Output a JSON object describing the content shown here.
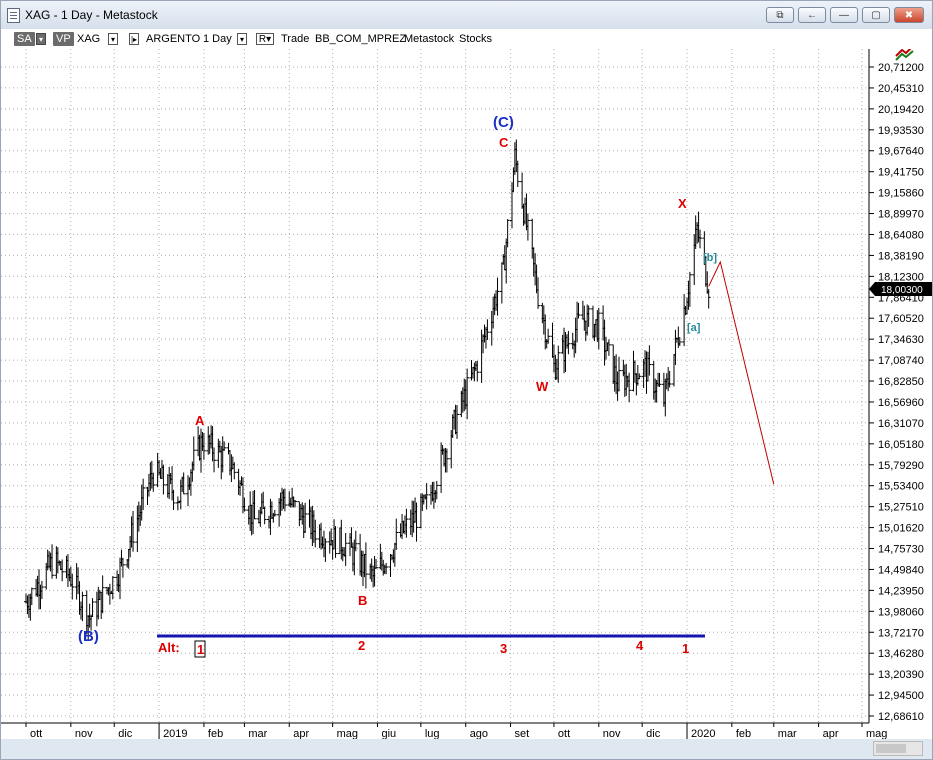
{
  "window": {
    "title": "XAG - 1 Day - Metastock",
    "buttons": [
      "⧉",
      "←",
      "―",
      "▢",
      "✖"
    ]
  },
  "toolbar": {
    "sa": "SA",
    "vp": "VP",
    "symbol": "XAG",
    "name": "ARGENTO",
    "period": "1 Day",
    "r_label": "R",
    "mode": "Trade",
    "source": "BB_COM_MPREZ",
    "provider": "Metastock",
    "type": "Stocks"
  },
  "price_axis": {
    "labels": [
      "20,71200",
      "20,45310",
      "20,19420",
      "19,93530",
      "19,67640",
      "19,41750",
      "19,15860",
      "18,89970",
      "18,64080",
      "18,38190",
      "18,12300",
      "17,86410",
      "17,60520",
      "17,34630",
      "17,08740",
      "16,82850",
      "16,56960",
      "16,31070",
      "16,05180",
      "15,79290",
      "15,53400",
      "15,27510",
      "15,01620",
      "14,75730",
      "14,49840",
      "14,23950",
      "13,98060",
      "13,72170",
      "13,46280",
      "13,20390",
      "12,94500",
      "12,68610"
    ],
    "current_price": "18,00300"
  },
  "time_axis": {
    "labels": [
      "ott",
      "nov",
      "dic",
      "2019",
      "feb",
      "mar",
      "apr",
      "mag",
      "giu",
      "lug",
      "ago",
      "set",
      "ott",
      "nov",
      "dic",
      "2020",
      "feb",
      "mar",
      "apr",
      "mag"
    ]
  },
  "wave_labels": {
    "B_paren": "(B)",
    "C_paren": "(C)",
    "A": "A",
    "B": "B",
    "C": "C",
    "W": "W",
    "X": "X",
    "sub_b": "[b]",
    "sub_a": "[a]",
    "alt": "Alt:",
    "alt_1": "1",
    "alt_2": "2",
    "alt_3": "3",
    "alt_4": "4",
    "alt_5": "1"
  },
  "colors": {
    "bars": "#000000",
    "wave_red": "#e00000",
    "wave_blue": "#1a2fc7",
    "wave_teal": "#2a8a9a",
    "projection": "#c00000",
    "alt_line": "#1515b0",
    "grid": "#b0b0b0"
  },
  "chart_data": {
    "type": "bar",
    "series": [
      {
        "kind": "ohlc",
        "keypoints_date_price": [
          [
            "2018-10-01",
            14.1
          ],
          [
            "2018-10-20",
            14.6
          ],
          [
            "2018-11-01",
            14.4
          ],
          [
            "2018-11-14",
            13.9
          ],
          [
            "2018-12-05",
            14.5
          ],
          [
            "2018-12-28",
            15.7
          ],
          [
            "2019-01-15",
            15.4
          ],
          [
            "2019-01-31",
            16.1
          ],
          [
            "2019-02-20",
            15.8
          ],
          [
            "2019-03-08",
            15.1
          ],
          [
            "2019-03-28",
            15.4
          ],
          [
            "2019-04-18",
            15.0
          ],
          [
            "2019-05-10",
            14.8
          ],
          [
            "2019-05-29",
            14.4
          ],
          [
            "2019-06-20",
            15.0
          ],
          [
            "2019-07-05",
            15.3
          ],
          [
            "2019-07-22",
            16.2
          ],
          [
            "2019-08-08",
            17.0
          ],
          [
            "2019-08-27",
            18.2
          ],
          [
            "2019-09-04",
            19.6
          ],
          [
            "2019-09-20",
            17.9
          ],
          [
            "2019-10-01",
            17.0
          ],
          [
            "2019-10-20",
            17.6
          ],
          [
            "2019-11-01",
            17.5
          ],
          [
            "2019-11-14",
            16.8
          ],
          [
            "2019-12-03",
            17.0
          ],
          [
            "2019-12-16",
            16.6
          ],
          [
            "2019-12-31",
            17.8
          ],
          [
            "2020-01-08",
            18.7
          ],
          [
            "2020-01-16",
            18.0
          ]
        ]
      }
    ],
    "projection": [
      [
        "2020-01-16",
        18.0
      ],
      [
        "2020-01-24",
        18.3
      ],
      [
        "2020-03-01",
        15.55
      ]
    ]
  }
}
